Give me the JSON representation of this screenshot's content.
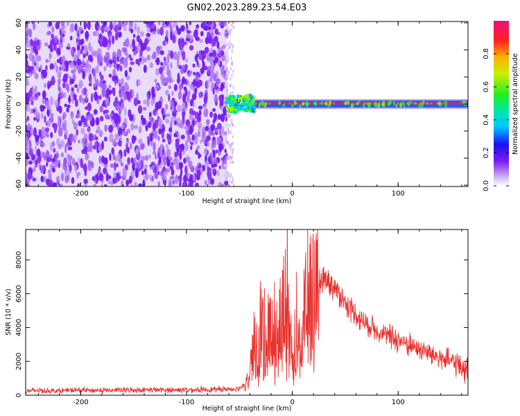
{
  "title": "GN02.2023.289.23.54.E03",
  "chart_data": [
    {
      "type": "heatmap",
      "xlabel": "Height of straight line (km)",
      "ylabel": "Frequency (Hz)",
      "xlim": [
        -252,
        166
      ],
      "ylim": [
        -61,
        61
      ],
      "xticks": [
        -200,
        -100,
        0,
        100
      ],
      "yticks": [
        -60,
        -40,
        -20,
        0,
        20,
        40,
        60
      ],
      "colorbar": {
        "label": "Normalized spectral amplitude",
        "ticks": [
          "0.0",
          "0.2",
          "0.4",
          "0.6",
          "0.8"
        ],
        "range": [
          0,
          1
        ]
      },
      "regions": [
        {
          "name": "broadband noise",
          "x": [
            -252,
            -62
          ],
          "freq": [
            -61,
            61
          ],
          "amplitude": [
            0.2,
            0.45
          ]
        },
        {
          "name": "onset scatter",
          "x": [
            -62,
            -35
          ],
          "freq": [
            -6,
            6
          ],
          "amplitude": [
            0.3,
            0.7
          ]
        },
        {
          "name": "carrier line",
          "x": [
            -35,
            166
          ],
          "freq": [
            -2,
            2
          ],
          "amplitude": [
            0.8,
            1.0
          ]
        }
      ]
    },
    {
      "type": "line",
      "xlabel": "Height of straight line (km)",
      "ylabel": "SNR (10 * v/v)",
      "xlim": [
        -252,
        166
      ],
      "ylim": [
        0,
        9800
      ],
      "xticks": [
        -200,
        -100,
        0,
        100
      ],
      "yticks": [
        0,
        2000,
        4000,
        6000,
        8000
      ],
      "color": "#e8302d",
      "series": [
        {
          "x": [
            -252,
            -240,
            -220,
            -200,
            -180,
            -160,
            -140,
            -120,
            -100,
            -80,
            -60,
            -50,
            -45,
            -40,
            -35,
            -30,
            -25,
            -20,
            -15,
            -10,
            -7,
            -5,
            -3,
            0,
            5,
            10,
            15,
            20,
            25,
            30,
            35,
            40,
            45,
            50,
            55,
            60,
            65,
            70,
            80,
            90,
            100,
            110,
            120,
            130,
            140,
            150,
            160,
            166
          ],
          "values": [
            250,
            280,
            260,
            300,
            280,
            300,
            320,
            300,
            320,
            330,
            360,
            400,
            700,
            1600,
            3000,
            4000,
            3400,
            4500,
            3800,
            4600,
            7000,
            9800,
            2800,
            4200,
            5200,
            5200,
            5600,
            6200,
            6800,
            7000,
            6700,
            6300,
            6000,
            5500,
            5100,
            4800,
            4500,
            4200,
            3900,
            3500,
            3300,
            3000,
            2700,
            2500,
            2200,
            2000,
            1700,
            1500
          ]
        }
      ]
    }
  ]
}
